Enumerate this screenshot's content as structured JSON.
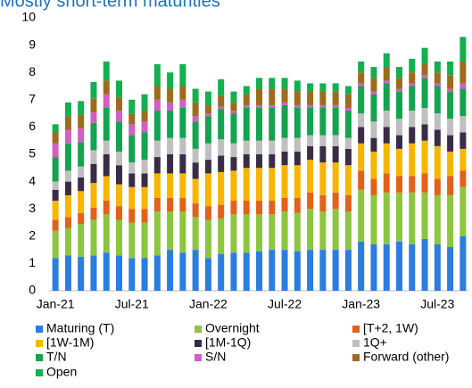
{
  "chart_data": {
    "type": "stacked_bar",
    "title": "Mostly short-term maturities",
    "categories": [
      "Jan-21",
      null,
      null,
      null,
      null,
      null,
      "Jul-21",
      null,
      null,
      null,
      null,
      null,
      "Jan-22",
      null,
      null,
      null,
      null,
      null,
      "Jul-22",
      null,
      null,
      null,
      null,
      null,
      "Jan-23",
      null,
      null,
      null,
      null,
      null,
      "Jul-23",
      null,
      null
    ],
    "ylim": [
      0,
      10
    ],
    "yticks": [
      0,
      1,
      2,
      3,
      4,
      5,
      6,
      7,
      8,
      9,
      10
    ],
    "series": [
      {
        "name": "Maturing (T)",
        "color": "#2a7de1",
        "values": [
          1.2,
          1.3,
          1.25,
          1.3,
          1.4,
          1.3,
          1.2,
          1.2,
          1.3,
          1.5,
          1.4,
          1.5,
          1.2,
          1.35,
          1.4,
          1.4,
          1.45,
          1.5,
          1.5,
          1.45,
          1.5,
          1.5,
          1.5,
          1.5,
          1.8,
          1.7,
          1.7,
          1.8,
          1.7,
          1.9,
          1.7,
          1.6,
          2.0
        ]
      },
      {
        "name": "Overnight",
        "color": "#8cc63f",
        "values": [
          1.0,
          1.0,
          1.2,
          1.3,
          1.4,
          1.3,
          1.3,
          1.3,
          1.6,
          1.4,
          1.5,
          1.2,
          1.4,
          1.3,
          1.4,
          1.4,
          1.35,
          1.3,
          1.4,
          1.4,
          1.5,
          1.4,
          1.5,
          1.4,
          1.9,
          1.8,
          1.9,
          1.8,
          1.9,
          1.7,
          1.8,
          1.9,
          1.8
        ]
      },
      {
        "name": "[T+2, 1W)",
        "color": "#e2611b",
        "values": [
          0.4,
          0.4,
          0.4,
          0.45,
          0.5,
          0.5,
          0.5,
          0.5,
          0.5,
          0.5,
          0.5,
          0.5,
          0.5,
          0.5,
          0.5,
          0.5,
          0.5,
          0.5,
          0.5,
          0.55,
          0.6,
          0.6,
          0.6,
          0.6,
          0.7,
          0.6,
          0.7,
          0.6,
          0.6,
          0.7,
          0.6,
          0.7,
          0.6
        ]
      },
      {
        "name": "[1W-1M)",
        "color": "#f7b500",
        "values": [
          0.7,
          0.8,
          0.8,
          0.9,
          0.9,
          0.8,
          0.8,
          0.8,
          0.9,
          0.9,
          0.9,
          0.9,
          1.2,
          1.2,
          1.1,
          1.2,
          1.2,
          1.2,
          1.2,
          1.2,
          1.2,
          1.2,
          1.1,
          1.1,
          1.0,
          1.0,
          1.1,
          1.0,
          1.2,
          1.2,
          1.2,
          0.9,
          0.8
        ]
      },
      {
        "name": "[1M-1Q)",
        "color": "#3a2c47",
        "values": [
          0.4,
          0.5,
          0.5,
          0.7,
          0.8,
          0.7,
          0.5,
          0.5,
          0.6,
          0.7,
          0.7,
          0.6,
          0.5,
          0.6,
          0.5,
          0.5,
          0.5,
          0.5,
          0.5,
          0.5,
          0.5,
          0.6,
          0.6,
          0.6,
          0.6,
          0.5,
          0.6,
          0.5,
          0.6,
          0.6,
          0.6,
          0.6,
          0.6
        ]
      },
      {
        "name": "1Q+",
        "color": "#bfbfbf",
        "values": [
          0.3,
          0.4,
          0.4,
          0.5,
          0.5,
          0.5,
          0.4,
          0.5,
          0.6,
          0.6,
          0.6,
          0.5,
          0.6,
          0.6,
          0.5,
          0.5,
          0.5,
          0.5,
          0.5,
          0.5,
          0.4,
          0.4,
          0.4,
          0.4,
          0.5,
          0.6,
          0.6,
          0.6,
          0.6,
          0.6,
          0.6,
          0.6,
          0.6
        ]
      },
      {
        "name": "T/N",
        "color": "#14a34f",
        "values": [
          0.9,
          1.0,
          0.9,
          1.0,
          1.2,
          1.1,
          1.0,
          1.0,
          1.1,
          1.0,
          1.1,
          1.0,
          1.0,
          1.1,
          1.1,
          1.2,
          1.2,
          1.2,
          1.2,
          1.1,
          1.0,
          1.0,
          1.0,
          1.0,
          1.0,
          1.0,
          1.0,
          1.0,
          0.9,
          1.1,
          1.0,
          1.0,
          1.0
        ]
      },
      {
        "name": "S/N",
        "color": "#d05fc6",
        "values": [
          0.5,
          0.5,
          0.5,
          0.4,
          0.5,
          0.4,
          0.4,
          0.4,
          0.4,
          0.3,
          0.3,
          0.2,
          0.1,
          0.1,
          0.1,
          0.1,
          0.1,
          0.1,
          0.1,
          0.1,
          0.1,
          0.1,
          0.1,
          0.1,
          0.1,
          0.1,
          0.1,
          0.1,
          0.1,
          0.1,
          0.1,
          0.1,
          0.2
        ]
      },
      {
        "name": "Forward (other)",
        "color": "#9c6b1c",
        "values": [
          0.4,
          0.5,
          0.5,
          0.5,
          0.5,
          0.5,
          0.4,
          0.4,
          0.5,
          0.5,
          0.5,
          0.5,
          0.3,
          0.4,
          0.3,
          0.4,
          0.6,
          0.6,
          0.5,
          0.5,
          0.5,
          0.5,
          0.5,
          0.5,
          0.4,
          0.5,
          0.5,
          0.4,
          0.4,
          0.4,
          0.4,
          0.5,
          0.8
        ]
      },
      {
        "name": "Open",
        "color": "#12b04e",
        "values": [
          0.3,
          0.5,
          0.5,
          0.6,
          0.7,
          0.6,
          0.5,
          0.6,
          0.8,
          0.6,
          0.8,
          0.5,
          0.5,
          0.6,
          0.4,
          0.3,
          0.4,
          0.4,
          0.4,
          0.4,
          0.3,
          0.3,
          0.3,
          0.3,
          0.4,
          0.4,
          0.5,
          0.4,
          0.5,
          0.6,
          0.4,
          0.5,
          0.9
        ]
      }
    ]
  }
}
